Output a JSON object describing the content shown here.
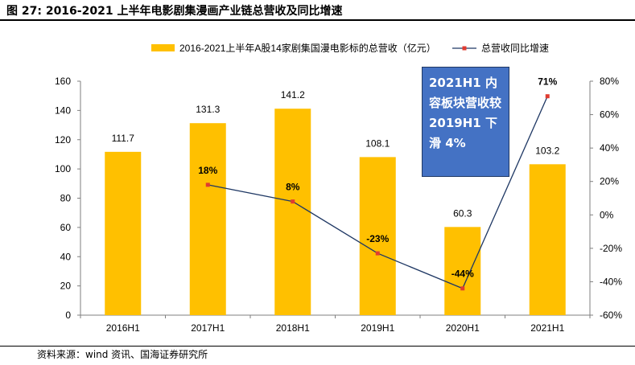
{
  "header": {
    "figure_title": "图 27:  2016-2021 上半年电影剧集漫画产业链总营收及同比增速"
  },
  "footer": {
    "source": "资料来源：wind 资讯、国海证券研究所"
  },
  "callout": {
    "text": "2021H1 内容板块营收较2019H1 下滑 4%"
  },
  "colors": {
    "bar": "#ffc000",
    "line": "#1f3864",
    "marker": "#e03c31",
    "callout_bg": "#4472c4",
    "axis": "#7f7f7f"
  },
  "chart_data": {
    "type": "bar",
    "categories": [
      "2016H1",
      "2017H1",
      "2018H1",
      "2019H1",
      "2020H1",
      "2021H1"
    ],
    "series": [
      {
        "name": "2016-2021上半年A股14家剧集国漫电影标的总营收（亿元）",
        "kind": "bar",
        "axis": "left",
        "values": [
          111.7,
          131.3,
          141.2,
          108.1,
          60.3,
          103.2
        ],
        "labels": [
          "111.7",
          "131.3",
          "141.2",
          "108.1",
          "60.3",
          "103.2"
        ]
      },
      {
        "name": "总营收同比增速",
        "kind": "line",
        "axis": "right",
        "values": [
          null,
          18,
          8,
          -23,
          -44,
          71
        ],
        "labels": [
          "",
          "18%",
          "8%",
          "-23%",
          "-44%",
          "71%"
        ]
      }
    ],
    "y_left": {
      "min": 0,
      "max": 160,
      "step": 20,
      "ticks": [
        "0",
        "20",
        "40",
        "60",
        "80",
        "100",
        "120",
        "140",
        "160"
      ]
    },
    "y_right": {
      "min": -60,
      "max": 80,
      "step": 20,
      "ticks": [
        "-60%",
        "-40%",
        "-20%",
        "0%",
        "20%",
        "40%",
        "60%",
        "80%"
      ]
    },
    "legend": {
      "position": "top"
    },
    "grid": false
  }
}
